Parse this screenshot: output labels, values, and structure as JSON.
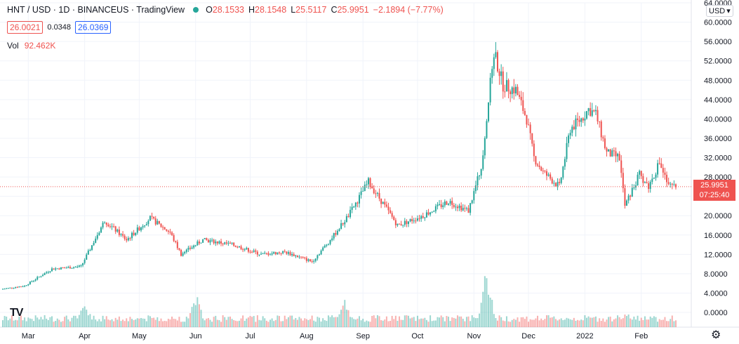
{
  "header": {
    "symbol": "HNT / USD · 1D · BINANCEUS · TradingView",
    "open_label": "O",
    "open": "28.1533",
    "high_label": "H",
    "high": "28.1548",
    "low_label": "L",
    "low": "25.5117",
    "close_label": "C",
    "close": "25.9951",
    "change": "−2.1894 (−7.77%)"
  },
  "quote": {
    "bid": "26.0021",
    "spread": "0.0348",
    "ask": "26.0369"
  },
  "volume": {
    "label": "Vol",
    "value": "92.462K"
  },
  "currency": {
    "label": "USD",
    "icon": "chevron-down-icon"
  },
  "last_price": {
    "value": "25.9951",
    "countdown": "07:25:40"
  },
  "logo": "TV",
  "colors": {
    "up": "#26a69a",
    "down": "#ef5350",
    "grid": "#f0f3fa",
    "text": "#131722"
  },
  "chart_data": {
    "type": "candlestick",
    "ylim": [
      0,
      64
    ],
    "y_ticks": [
      "64.0000",
      "60.0000",
      "56.0000",
      "52.0000",
      "48.0000",
      "44.0000",
      "40.0000",
      "36.0000",
      "32.0000",
      "28.0000",
      "24.0000",
      "20.0000",
      "16.0000",
      "12.0000",
      "8.0000",
      "4.0000",
      "0.0000"
    ],
    "x_ticks": [
      "Mar",
      "Apr",
      "May",
      "Jun",
      "Jul",
      "Aug",
      "Sep",
      "Oct",
      "Nov",
      "Dec",
      "2022",
      "Feb"
    ],
    "x_tick_dates": [
      "2021-03-01",
      "2021-04-01",
      "2021-05-01",
      "2021-06-01",
      "2021-07-01",
      "2021-08-01",
      "2021-09-01",
      "2021-10-01",
      "2021-11-01",
      "2021-12-01",
      "2022-01-01",
      "2022-02-01"
    ],
    "x_range": [
      "2021-02-15",
      "2022-02-20"
    ],
    "price_key_dates": [
      "2021-02-15",
      "2021-02-28",
      "2021-03-15",
      "2021-03-31",
      "2021-04-13",
      "2021-04-25",
      "2021-05-08",
      "2021-05-19",
      "2021-05-25",
      "2021-06-06",
      "2021-06-22",
      "2021-07-08",
      "2021-07-21",
      "2021-08-05",
      "2021-08-15",
      "2021-08-25",
      "2021-09-05",
      "2021-09-21",
      "2021-10-05",
      "2021-10-19",
      "2021-10-30",
      "2021-11-06",
      "2021-11-13",
      "2021-11-18",
      "2021-11-25",
      "2021-12-01",
      "2021-12-05",
      "2021-12-10",
      "2021-12-19",
      "2021-12-25",
      "2021-12-31",
      "2022-01-04",
      "2022-01-08",
      "2022-01-14",
      "2022-01-21",
      "2022-01-24",
      "2022-02-01",
      "2022-02-06",
      "2022-02-12",
      "2022-02-17"
    ],
    "price_key_values": [
      4.8,
      5.5,
      9.0,
      9.5,
      19.0,
      15.0,
      19.5,
      16.5,
      12.0,
      15.0,
      14.0,
      12.0,
      12.5,
      10.5,
      15.0,
      20.0,
      27.0,
      18.0,
      20.0,
      23.0,
      21.0,
      30.0,
      54.0,
      47.0,
      46.0,
      40.0,
      32.0,
      29.0,
      26.0,
      38.0,
      40.0,
      42.0,
      41.0,
      33.0,
      32.0,
      22.0,
      28.5,
      26.0,
      31.0,
      26.0
    ],
    "volume_ylim": [
      0,
      100
    ],
    "volume_peak_dates": [
      "2021-04-01",
      "2021-06-01",
      "2021-08-22",
      "2021-11-08",
      "2022-01-24"
    ],
    "volume_peak_values": [
      40,
      55,
      48,
      95,
      25
    ]
  }
}
